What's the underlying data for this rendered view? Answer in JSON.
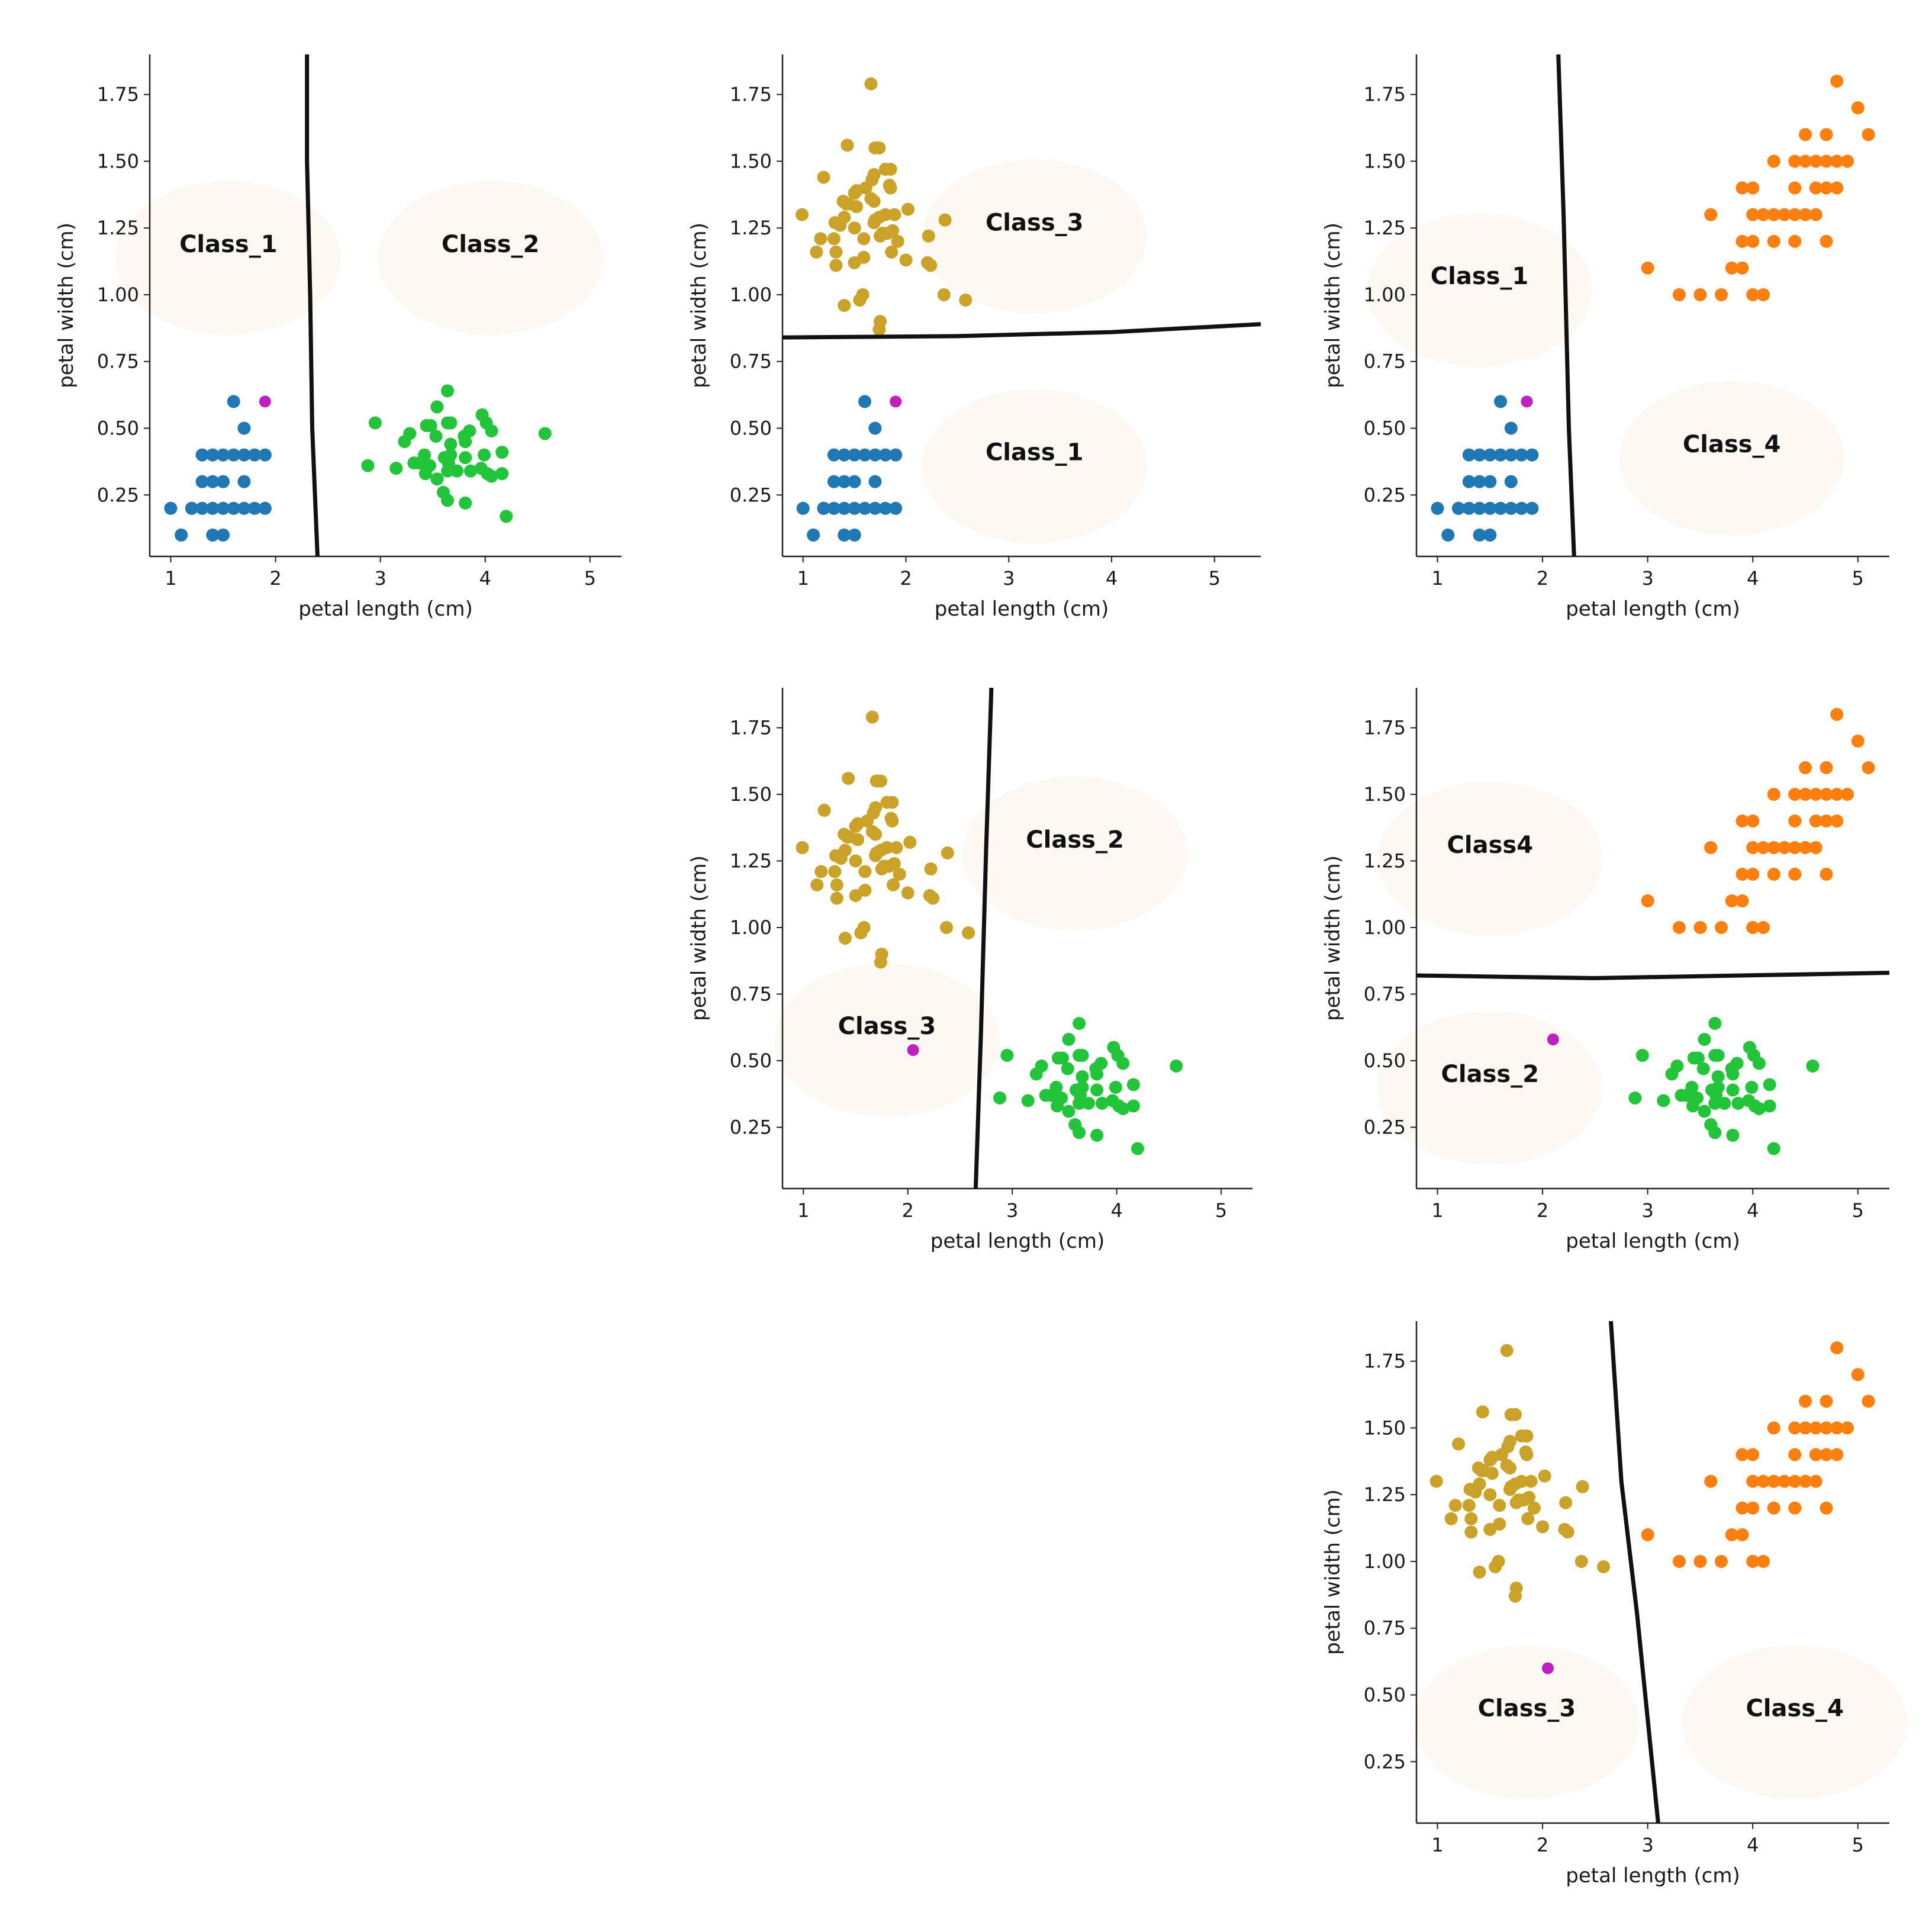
{
  "figure": {
    "background": "#ffffff",
    "region_shade": "#fdf9f2"
  },
  "colors": {
    "Class_1": "#1f77b4",
    "Class_2": "#22c53a",
    "Class_3": "#c9a227",
    "Class_4": "#ff7f0e",
    "query": "#c020c0",
    "boundary": "#111111"
  },
  "chart_data": [
    {
      "type": "scatter",
      "panel": "row1-col1",
      "xlabel": "petal length (cm)",
      "ylabel": "petal width (cm)",
      "xlim": [
        0.8,
        5.3
      ],
      "ylim": [
        0.02,
        1.9
      ],
      "xticks": [
        1,
        2,
        3,
        4,
        5
      ],
      "yticks": [
        0.25,
        0.5,
        0.75,
        1.0,
        1.25,
        1.5,
        1.75
      ],
      "series": [
        {
          "class": "Class_1"
        },
        {
          "class": "Class_2"
        }
      ],
      "query_point": [
        1.9,
        0.6
      ],
      "boundary": [
        [
          2.3,
          1.9
        ],
        [
          2.3,
          1.5
        ],
        [
          2.33,
          1.0
        ],
        [
          2.35,
          0.5
        ],
        [
          2.4,
          0.02
        ]
      ],
      "region_labels": [
        {
          "text": "Class_1",
          "x": 1.55,
          "y": 1.16
        },
        {
          "text": "Class_2",
          "x": 4.05,
          "y": 1.16
        }
      ]
    },
    {
      "type": "scatter",
      "panel": "row1-col2",
      "xlabel": "petal length (cm)",
      "ylabel": "petal width (cm)",
      "xlim": [
        0.8,
        5.45
      ],
      "ylim": [
        0.02,
        1.9
      ],
      "xticks": [
        1,
        2,
        3,
        4,
        5
      ],
      "yticks": [
        0.25,
        0.5,
        0.75,
        1.0,
        1.25,
        1.5,
        1.75
      ],
      "series": [
        {
          "class": "Class_3"
        },
        {
          "class": "Class_1"
        }
      ],
      "query_point": [
        1.9,
        0.6
      ],
      "boundary": [
        [
          0.8,
          0.84
        ],
        [
          2.5,
          0.845
        ],
        [
          4.0,
          0.86
        ],
        [
          5.45,
          0.89
        ]
      ],
      "region_labels": [
        {
          "text": "Class_3",
          "x": 3.25,
          "y": 1.24
        },
        {
          "text": "Class_1",
          "x": 3.25,
          "y": 0.38
        }
      ]
    },
    {
      "type": "scatter",
      "panel": "row1-col3",
      "xlabel": "petal length (cm)",
      "ylabel": "petal width (cm)",
      "xlim": [
        0.8,
        5.3
      ],
      "ylim": [
        0.02,
        1.9
      ],
      "xticks": [
        1,
        2,
        3,
        4,
        5
      ],
      "yticks": [
        0.25,
        0.5,
        0.75,
        1.0,
        1.25,
        1.5,
        1.75
      ],
      "series": [
        {
          "class": "Class_1"
        },
        {
          "class": "Class_4"
        }
      ],
      "query_point": [
        1.85,
        0.6
      ],
      "boundary": [
        [
          2.15,
          1.9
        ],
        [
          2.2,
          1.3
        ],
        [
          2.25,
          0.5
        ],
        [
          2.3,
          0.02
        ]
      ],
      "region_labels": [
        {
          "text": "Class_1",
          "x": 1.4,
          "y": 1.04
        },
        {
          "text": "Class_4",
          "x": 3.8,
          "y": 0.41
        }
      ]
    },
    {
      "type": "scatter",
      "panel": "row2-col2",
      "xlabel": "petal length (cm)",
      "ylabel": "petal width (cm)",
      "xlim": [
        0.8,
        5.3
      ],
      "ylim": [
        0.02,
        1.9
      ],
      "xticks": [
        1,
        2,
        3,
        4,
        5
      ],
      "yticks": [
        0.25,
        0.5,
        0.75,
        1.0,
        1.25,
        1.5,
        1.75
      ],
      "series": [
        {
          "class": "Class_3"
        },
        {
          "class": "Class_2"
        }
      ],
      "query_point": [
        2.05,
        0.54
      ],
      "boundary": [
        [
          2.8,
          1.9
        ],
        [
          2.75,
          1.3
        ],
        [
          2.7,
          0.6
        ],
        [
          2.65,
          0.02
        ]
      ],
      "region_labels": [
        {
          "text": "Class_2",
          "x": 3.6,
          "y": 1.3
        },
        {
          "text": "Class_3",
          "x": 1.8,
          "y": 0.6
        }
      ]
    },
    {
      "type": "scatter",
      "panel": "row2-col3",
      "xlabel": "petal length (cm)",
      "ylabel": "petal width (cm)",
      "xlim": [
        0.8,
        5.3
      ],
      "ylim": [
        0.02,
        1.9
      ],
      "xticks": [
        1,
        2,
        3,
        4,
        5
      ],
      "yticks": [
        0.25,
        0.5,
        0.75,
        1.0,
        1.25,
        1.5,
        1.75
      ],
      "series": [
        {
          "class": "Class_4"
        },
        {
          "class": "Class_2"
        }
      ],
      "query_point": [
        2.1,
        0.58
      ],
      "boundary": [
        [
          0.8,
          0.82
        ],
        [
          2.5,
          0.81
        ],
        [
          5.3,
          0.83
        ]
      ],
      "region_labels": [
        {
          "text": "Class4",
          "x": 1.5,
          "y": 1.28
        },
        {
          "text": "Class_2",
          "x": 1.5,
          "y": 0.42
        }
      ]
    },
    {
      "type": "scatter",
      "panel": "row3-col3",
      "xlabel": "petal length (cm)",
      "ylabel": "petal width (cm)",
      "xlim": [
        0.8,
        5.3
      ],
      "ylim": [
        0.02,
        1.9
      ],
      "xticks": [
        1,
        2,
        3,
        4,
        5
      ],
      "yticks": [
        0.25,
        0.5,
        0.75,
        1.0,
        1.25,
        1.5,
        1.75
      ],
      "series": [
        {
          "class": "Class_3"
        },
        {
          "class": "Class_4"
        }
      ],
      "query_point": [
        2.05,
        0.6
      ],
      "boundary": [
        [
          2.65,
          1.9
        ],
        [
          2.75,
          1.3
        ],
        [
          2.9,
          0.8
        ],
        [
          3.1,
          0.02
        ]
      ],
      "region_labels": [
        {
          "text": "Class_3",
          "x": 1.85,
          "y": 0.42
        },
        {
          "text": "Class_4",
          "x": 4.4,
          "y": 0.42
        }
      ]
    }
  ]
}
